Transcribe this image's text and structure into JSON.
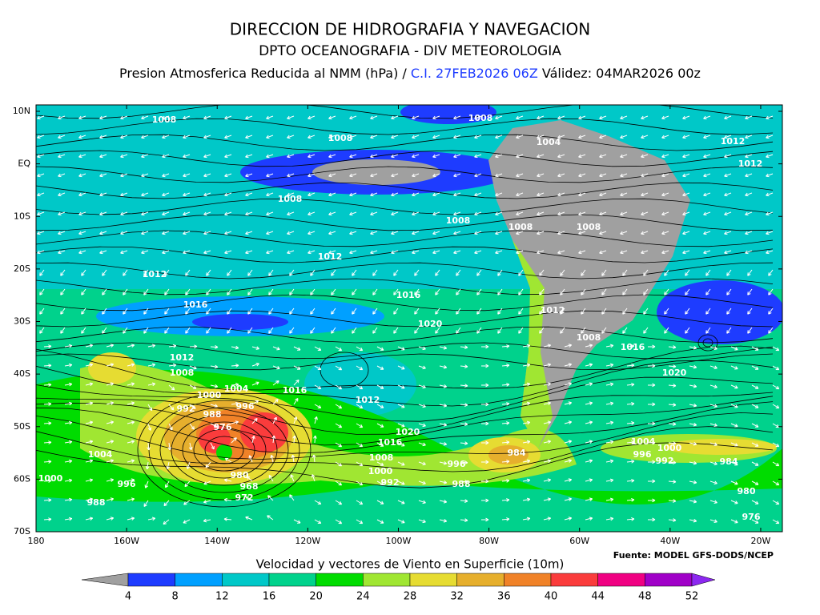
{
  "header": {
    "title": "DIRECCION DE HIDROGRAFIA Y NAVEGACION",
    "subtitle": "DPTO OCEANOGRAFIA - DIV METEOROLOGIA",
    "product": "Presion Atmosferica Reducida al NMM (hPa) /",
    "init": "C.I. 27FEB2026 06Z",
    "valid": "Válidez: 04MAR2026 00z"
  },
  "map": {
    "lat_ticks": [
      {
        "value": 10,
        "label": "10N"
      },
      {
        "value": 0,
        "label": "EQ"
      },
      {
        "value": -10,
        "label": "10S"
      },
      {
        "value": -20,
        "label": "20S"
      },
      {
        "value": -30,
        "label": "30S"
      },
      {
        "value": -40,
        "label": "40S"
      },
      {
        "value": -50,
        "label": "50S"
      },
      {
        "value": -60,
        "label": "60S"
      },
      {
        "value": -70,
        "label": "70S"
      }
    ],
    "lon_ticks": [
      {
        "value": -180,
        "label": "180"
      },
      {
        "value": -160,
        "label": "160W"
      },
      {
        "value": -140,
        "label": "140W"
      },
      {
        "value": -120,
        "label": "120W"
      },
      {
        "value": -100,
        "label": "100W"
      },
      {
        "value": -80,
        "label": "80W"
      },
      {
        "value": -60,
        "label": "60W"
      },
      {
        "value": -40,
        "label": "40W"
      },
      {
        "value": -20,
        "label": "20W"
      }
    ],
    "isobar_labels": [
      "1016",
      "1008",
      "1008",
      "1008",
      "1004",
      "1012",
      "1012",
      "1008",
      "1008",
      "1008",
      "1008",
      "1012",
      "1012",
      "1016",
      "1016",
      "1012",
      "1020",
      "1008",
      "1016",
      "1012",
      "1008",
      "1020",
      "1016",
      "1004",
      "1000",
      "1012",
      "996",
      "992",
      "988",
      "976",
      "1020",
      "1016",
      "1004",
      "1000",
      "1008",
      "984",
      "996",
      "992",
      "1004",
      "984",
      "996",
      "1000",
      "980",
      "1000",
      "992",
      "968",
      "996",
      "988",
      "980",
      "972",
      "988",
      "976"
    ]
  },
  "colorbar": {
    "title": "Velocidad y vectores de Viento en Superficie (10m)",
    "ticks": [
      4,
      8,
      12,
      16,
      20,
      24,
      28,
      32,
      36,
      40,
      44,
      48,
      52
    ],
    "colors": [
      "#a0a0a0",
      "#1e3cff",
      "#00a0ff",
      "#00c8c8",
      "#00d28c",
      "#00dc00",
      "#a0e632",
      "#e6dc32",
      "#e6af2d",
      "#f08228",
      "#fa3c3c",
      "#f00082",
      "#a000c8",
      "#8c28f0"
    ]
  },
  "source": "Fuente: MODEL GFS-DODS/NCEP"
}
